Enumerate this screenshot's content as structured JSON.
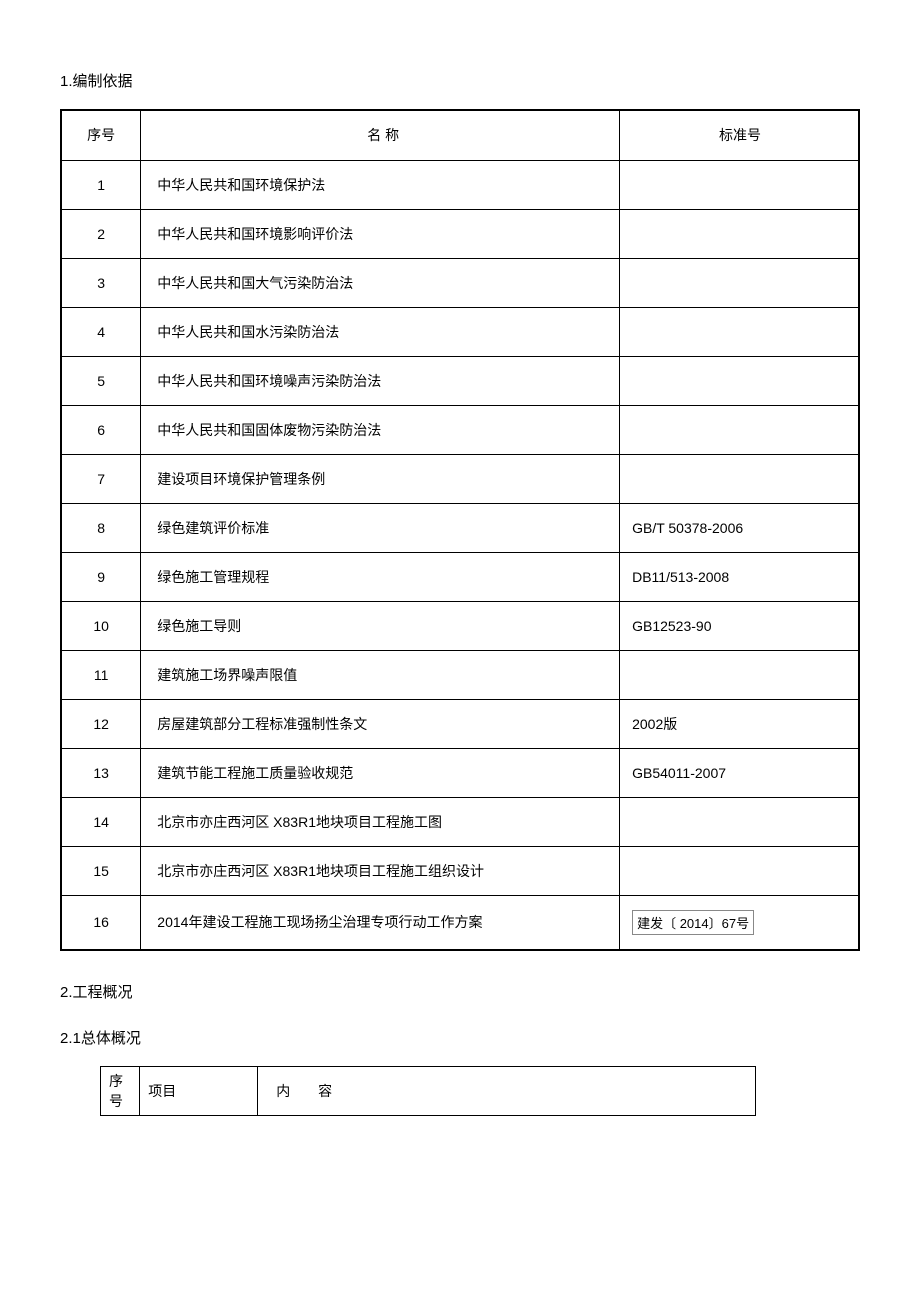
{
  "sections": {
    "s1_title": "1.编制依据",
    "s2_title": "2.工程概况",
    "s21_title": "2.1总体概况"
  },
  "table1": {
    "headers": {
      "seq": "序号",
      "name": "名 称",
      "std": "标准号"
    },
    "rows": [
      {
        "seq": "1",
        "name": "中华人民共和国环境保护法",
        "std": ""
      },
      {
        "seq": "2",
        "name": "中华人民共和国环境影响评价法",
        "std": ""
      },
      {
        "seq": "3",
        "name": "中华人民共和国大气污染防治法",
        "std": ""
      },
      {
        "seq": "4",
        "name": "中华人民共和国水污染防治法",
        "std": ""
      },
      {
        "seq": "5",
        "name": "中华人民共和国环境噪声污染防治法",
        "std": ""
      },
      {
        "seq": "6",
        "name": "中华人民共和国固体废物污染防治法",
        "std": ""
      },
      {
        "seq": "7",
        "name": "建设项目环境保护管理条例",
        "std": ""
      },
      {
        "seq": "8",
        "name": "绿色建筑评价标准",
        "std": "GB/T 50378-2006"
      },
      {
        "seq": "9",
        "name": "绿色施工管理规程",
        "std": "DB11/513-2008"
      },
      {
        "seq": "10",
        "name": "绿色施工导则",
        "std": "GB12523-90"
      },
      {
        "seq": "11",
        "name": "建筑施工场界噪声限值",
        "std": ""
      },
      {
        "seq": "12",
        "name": "房屋建筑部分工程标准强制性条文",
        "std": "2002版"
      },
      {
        "seq": "13",
        "name": "建筑节能工程施工质量验收规范",
        "std": "GB54011-2007"
      },
      {
        "seq": "14",
        "name": "北京市亦庄西河区 X83R1地块项目工程施工图",
        "std": ""
      },
      {
        "seq": "15",
        "name": "北京市亦庄西河区 X83R1地块项目工程施工组织设计",
        "std": ""
      },
      {
        "seq": "16",
        "name": "2014年建设工程施工现场扬尘治理专项行动工作方案",
        "std": "建发〔 2014〕67号",
        "boxed": true
      }
    ]
  },
  "table2": {
    "headers": {
      "seq": "序号",
      "item": "项目",
      "content": "内容"
    }
  },
  "styling": {
    "page_background": "#ffffff",
    "text_color": "#000000",
    "border_color": "#000000",
    "body_font_size": 15,
    "table_font_size": 14,
    "page_padding_h": 60,
    "page_padding_v": 40
  }
}
